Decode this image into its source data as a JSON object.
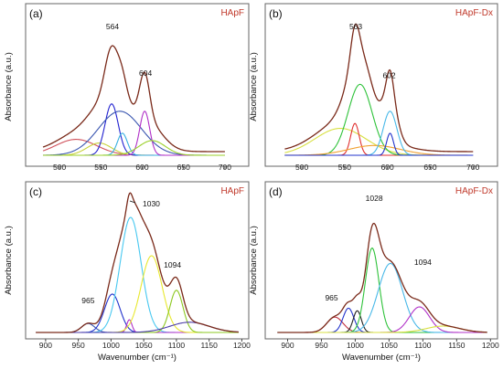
{
  "chart_data": [
    {
      "id": "a",
      "type": "line",
      "panel_label": "(a)",
      "sample": "HApF",
      "ylabel": "Absorbance (a.u.)",
      "xlabel": "",
      "xlim": [
        470,
        720
      ],
      "ylim": [
        0,
        1.15
      ],
      "x_ticks": [
        500,
        550,
        600,
        650,
        700
      ],
      "peak_labels": [
        {
          "text": "564",
          "x": 564,
          "y": 1.0
        },
        {
          "text": "604",
          "x": 604,
          "y": 0.62
        }
      ],
      "envelope": {
        "color": "#7a2a1a",
        "baseline": 0.03,
        "x_range": [
          480,
          700
        ]
      },
      "components": [
        {
          "center": 520,
          "height": 0.13,
          "width": 25,
          "color": "#d0505a"
        },
        {
          "center": 548,
          "height": 0.1,
          "width": 15,
          "color": "#c8d23a"
        },
        {
          "center": 563,
          "height": 0.42,
          "width": 8,
          "color": "#2222d0"
        },
        {
          "center": 573,
          "height": 0.36,
          "width": 26,
          "color": "#3a56b0"
        },
        {
          "center": 576,
          "height": 0.18,
          "width": 6,
          "color": "#38b0e0"
        },
        {
          "center": 603,
          "height": 0.36,
          "width": 6,
          "color": "#b030c8"
        },
        {
          "center": 612,
          "height": 0.12,
          "width": 16,
          "color": "#9bd02a"
        }
      ]
    },
    {
      "id": "b",
      "type": "line",
      "panel_label": "(b)",
      "sample": "HApF-Dx",
      "ylabel": "Absorbance (a.u.)",
      "xlabel": "",
      "xlim": [
        470,
        720
      ],
      "ylim": [
        0,
        1.15
      ],
      "x_ticks": [
        500,
        550,
        600,
        650,
        700
      ],
      "peak_labels": [
        {
          "text": "563",
          "x": 563,
          "y": 1.0
        },
        {
          "text": "602",
          "x": 602,
          "y": 0.6
        }
      ],
      "envelope": {
        "color": "#7a2a1a",
        "baseline": 0.03,
        "x_range": [
          480,
          700
        ]
      },
      "components": [
        {
          "center": 545,
          "height": 0.22,
          "width": 30,
          "color": "#d8e040"
        },
        {
          "center": 562,
          "height": 0.26,
          "width": 5,
          "color": "#e03030"
        },
        {
          "center": 568,
          "height": 0.58,
          "width": 14,
          "color": "#2ec23a"
        },
        {
          "center": 585,
          "height": 0.08,
          "width": 30,
          "color": "#f0a030"
        },
        {
          "center": 603,
          "height": 0.36,
          "width": 8,
          "color": "#48b8e8"
        },
        {
          "center": 603,
          "height": 0.18,
          "width": 4,
          "color": "#2233cc"
        }
      ]
    },
    {
      "id": "c",
      "type": "line",
      "panel_label": "(c)",
      "sample": "HApF",
      "ylabel": "Absorbance (a.u.)",
      "xlabel": "Wavenumber (cm⁻¹)",
      "xlim": [
        875,
        1205
      ],
      "ylim": [
        0,
        1.1
      ],
      "x_ticks": [
        900,
        950,
        1000,
        1050,
        1100,
        1150,
        1200
      ],
      "peak_labels": [
        {
          "text": "1030",
          "x": 1040,
          "y": 1.0
        },
        {
          "text": "965",
          "x": 965,
          "y": 0.2
        },
        {
          "text": "1094",
          "x": 1094,
          "y": 0.48
        }
      ],
      "envelope": {
        "color": "#7a2a1a",
        "baseline": 0.0,
        "x_range": [
          885,
          1195
        ]
      },
      "components": [
        {
          "center": 965,
          "height": 0.07,
          "width": 10,
          "color": "#3a56b0"
        },
        {
          "center": 1002,
          "height": 0.3,
          "width": 12,
          "color": "#2233cc"
        },
        {
          "center": 1030,
          "height": 0.9,
          "width": 16,
          "color": "#48c8f0"
        },
        {
          "center": 1028,
          "height": 0.1,
          "width": 4,
          "color": "#b030c8"
        },
        {
          "center": 1062,
          "height": 0.6,
          "width": 16,
          "color": "#e8e830"
        },
        {
          "center": 1100,
          "height": 0.33,
          "width": 10,
          "color": "#8cc820"
        },
        {
          "center": 1120,
          "height": 0.08,
          "width": 30,
          "color": "#4a3aa8"
        }
      ]
    },
    {
      "id": "d",
      "type": "line",
      "panel_label": "(d)",
      "sample": "HApF-Dx",
      "ylabel": "Absorbance (a.u.)",
      "xlabel": "Wavenumber (cm⁻¹)",
      "xlim": [
        875,
        1205
      ],
      "ylim": [
        0,
        1.1
      ],
      "x_ticks": [
        900,
        950,
        1000,
        1050,
        1100,
        1150,
        1200
      ],
      "peak_labels": [
        {
          "text": "1028",
          "x": 1028,
          "y": 1.0
        },
        {
          "text": "965",
          "x": 965,
          "y": 0.22
        },
        {
          "text": "1094",
          "x": 1100,
          "y": 0.5
        }
      ],
      "envelope": {
        "color": "#7a2a1a",
        "baseline": 0.0,
        "x_range": [
          885,
          1195
        ]
      },
      "components": [
        {
          "center": 970,
          "height": 0.12,
          "width": 12,
          "color": "#c03040"
        },
        {
          "center": 990,
          "height": 0.19,
          "width": 8,
          "color": "#2233cc"
        },
        {
          "center": 1003,
          "height": 0.17,
          "width": 6,
          "color": "#222222"
        },
        {
          "center": 1025,
          "height": 0.66,
          "width": 10,
          "color": "#2ec23a"
        },
        {
          "center": 1052,
          "height": 0.54,
          "width": 18,
          "color": "#48b8e8"
        },
        {
          "center": 1095,
          "height": 0.2,
          "width": 15,
          "color": "#b030c8"
        },
        {
          "center": 1130,
          "height": 0.05,
          "width": 25,
          "color": "#d8e040"
        }
      ]
    }
  ]
}
